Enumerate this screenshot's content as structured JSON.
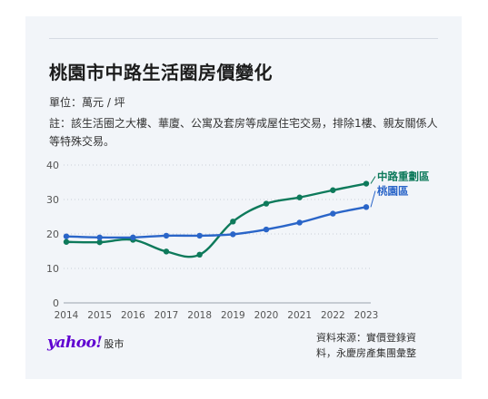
{
  "card": {
    "title": "桃園市中路生活圈房價變化",
    "unit_text": "單位：萬元 / 坪",
    "note_text": "註：該生活圈之大樓、華廈、公寓及套房等成屋住宅交易，排除1樓、親友關係人等特殊交易。",
    "brand_logo": "yahoo!",
    "brand_sub": "股市",
    "source_text": "資料來源：實價登錄資料，永慶房產集團彙整"
  },
  "chart_data": {
    "type": "line",
    "title": "桃園市中路生活圈房價變化",
    "xlabel": "",
    "ylabel": "萬元 / 坪",
    "categories": [
      "2014",
      "2015",
      "2016",
      "2017",
      "2018",
      "2019",
      "2020",
      "2021",
      "2022",
      "2023"
    ],
    "ylim": [
      0,
      40
    ],
    "yticks": [
      0,
      10,
      20,
      30,
      40
    ],
    "grid": true,
    "series": [
      {
        "name": "中路重劃區",
        "color": "#0e7a5b",
        "values": [
          17.7,
          17.6,
          18.3,
          14.9,
          14.0,
          23.6,
          28.8,
          30.6,
          32.7,
          34.6
        ]
      },
      {
        "name": "桃園區",
        "color": "#2a65c8",
        "values": [
          19.3,
          19.0,
          19.0,
          19.5,
          19.5,
          19.9,
          21.3,
          23.3,
          25.9,
          27.8
        ]
      }
    ]
  }
}
